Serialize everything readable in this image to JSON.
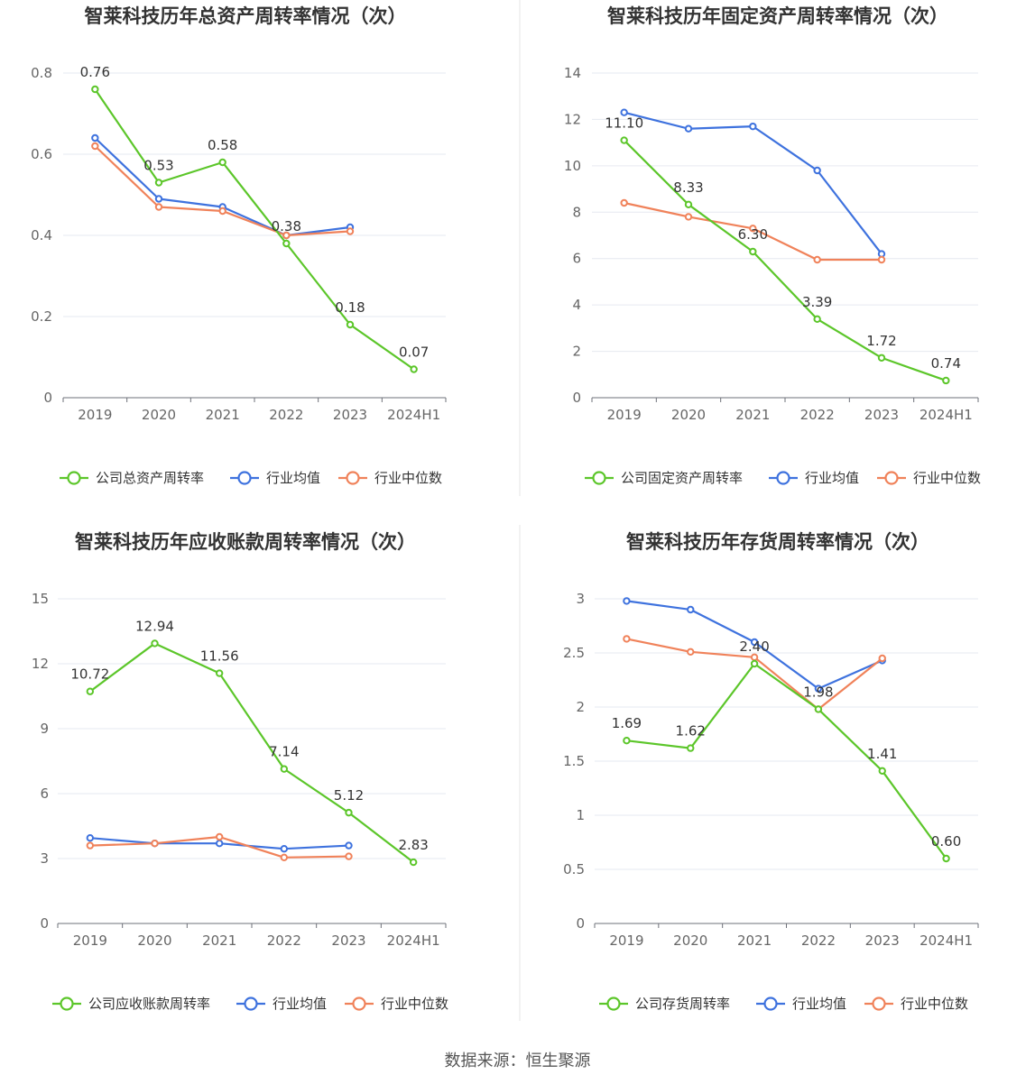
{
  "colors": {
    "company": "#5cc62a",
    "avg": "#3e72de",
    "median": "#f0825a",
    "grid": "#e6e9f0",
    "axis": "#6e7079",
    "divider": "#e6e6e6"
  },
  "footer": "数据来源：恒生聚源",
  "chart_data": [
    {
      "type": "line",
      "title": "智莱科技历年总资产周转率情况（次）",
      "categories": [
        "2019",
        "2020",
        "2021",
        "2022",
        "2023",
        "2024H1"
      ],
      "yticks": [
        "0",
        "0.2",
        "0.4",
        "0.6",
        "0.8"
      ],
      "ylim": [
        0,
        0.8
      ],
      "series": [
        {
          "name": "公司总资产周转率",
          "key": "company",
          "values": [
            0.76,
            0.53,
            0.58,
            0.38,
            0.18,
            0.07
          ],
          "labels": [
            "0.76",
            "0.53",
            "0.58",
            "0.38",
            "0.18",
            "0.07"
          ]
        },
        {
          "name": "行业均值",
          "key": "avg",
          "values": [
            0.64,
            0.49,
            0.47,
            0.4,
            0.42,
            null
          ]
        },
        {
          "name": "行业中位数",
          "key": "median",
          "values": [
            0.62,
            0.47,
            0.46,
            0.4,
            0.41,
            null
          ]
        }
      ],
      "legend_position": "bottom"
    },
    {
      "type": "line",
      "title": "智莱科技历年固定资产周转率情况（次）",
      "categories": [
        "2019",
        "2020",
        "2021",
        "2022",
        "2023",
        "2024H1"
      ],
      "yticks": [
        "0",
        "2",
        "4",
        "6",
        "8",
        "10",
        "12",
        "14"
      ],
      "ylim": [
        0,
        14
      ],
      "series": [
        {
          "name": "公司固定资产周转率",
          "key": "company",
          "values": [
            11.1,
            8.33,
            6.3,
            3.39,
            1.72,
            0.74
          ],
          "labels": [
            "11.10",
            "8.33",
            "6.30",
            "3.39",
            "1.72",
            "0.74"
          ]
        },
        {
          "name": "行业均值",
          "key": "avg",
          "values": [
            12.3,
            11.6,
            11.7,
            9.8,
            6.2,
            null
          ]
        },
        {
          "name": "行业中位数",
          "key": "median",
          "values": [
            8.4,
            7.8,
            7.3,
            5.95,
            5.95,
            null
          ]
        }
      ],
      "legend_position": "bottom"
    },
    {
      "type": "line",
      "title": "智莱科技历年应收账款周转率情况（次）",
      "categories": [
        "2019",
        "2020",
        "2021",
        "2022",
        "2023",
        "2024H1"
      ],
      "yticks": [
        "0",
        "3",
        "6",
        "9",
        "12",
        "15"
      ],
      "ylim": [
        0,
        15
      ],
      "series": [
        {
          "name": "公司应收账款周转率",
          "key": "company",
          "values": [
            10.72,
            12.94,
            11.56,
            7.14,
            5.12,
            2.83
          ],
          "labels": [
            "10.72",
            "12.94",
            "11.56",
            "7.14",
            "5.12",
            "2.83"
          ]
        },
        {
          "name": "行业均值",
          "key": "avg",
          "values": [
            3.95,
            3.7,
            3.7,
            3.45,
            3.6,
            null
          ]
        },
        {
          "name": "行业中位数",
          "key": "median",
          "values": [
            3.6,
            3.7,
            4.0,
            3.05,
            3.1,
            null
          ]
        }
      ],
      "legend_position": "bottom"
    },
    {
      "type": "line",
      "title": "智莱科技历年存货周转率情况（次）",
      "categories": [
        "2019",
        "2020",
        "2021",
        "2022",
        "2023",
        "2024H1"
      ],
      "yticks": [
        "0",
        "0.5",
        "1",
        "1.5",
        "2",
        "2.5",
        "3"
      ],
      "ylim": [
        0,
        3
      ],
      "series": [
        {
          "name": "公司存货周转率",
          "key": "company",
          "values": [
            1.69,
            1.62,
            2.4,
            1.98,
            1.41,
            0.6
          ],
          "labels": [
            "1.69",
            "1.62",
            "2.40",
            "1.98",
            "1.41",
            "0.60"
          ]
        },
        {
          "name": "行业均值",
          "key": "avg",
          "values": [
            2.98,
            2.9,
            2.6,
            2.17,
            2.43,
            null
          ]
        },
        {
          "name": "行业中位数",
          "key": "median",
          "values": [
            2.63,
            2.51,
            2.46,
            1.98,
            2.45,
            null
          ]
        }
      ],
      "legend_position": "bottom"
    }
  ]
}
